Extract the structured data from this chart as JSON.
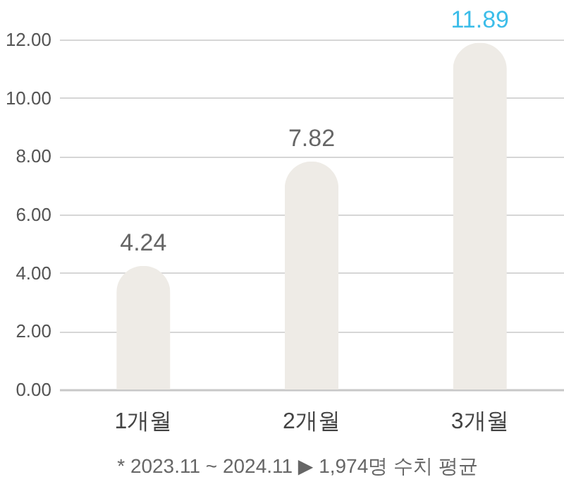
{
  "chart_data": {
    "type": "bar",
    "categories": [
      "1개월",
      "2개월",
      "3개월"
    ],
    "values": [
      4.24,
      7.82,
      11.89
    ],
    "color": "#eeebe6",
    "ylim": [
      0,
      12
    ],
    "yticks": [
      {
        "value": 0,
        "label": "0.00"
      },
      {
        "value": 2,
        "label": "2.00"
      },
      {
        "value": 4,
        "label": "4.00"
      },
      {
        "value": 6,
        "label": "6.00"
      },
      {
        "value": 8,
        "label": "8.00"
      },
      {
        "value": 10,
        "label": "10.00"
      },
      {
        "value": 12,
        "label": "12.00"
      }
    ],
    "grid": "y",
    "data_labels": true,
    "annotations": [
      "* 2023.11 ~ 2024.11 ▶ 1,974명 수치 평균"
    ]
  }
}
